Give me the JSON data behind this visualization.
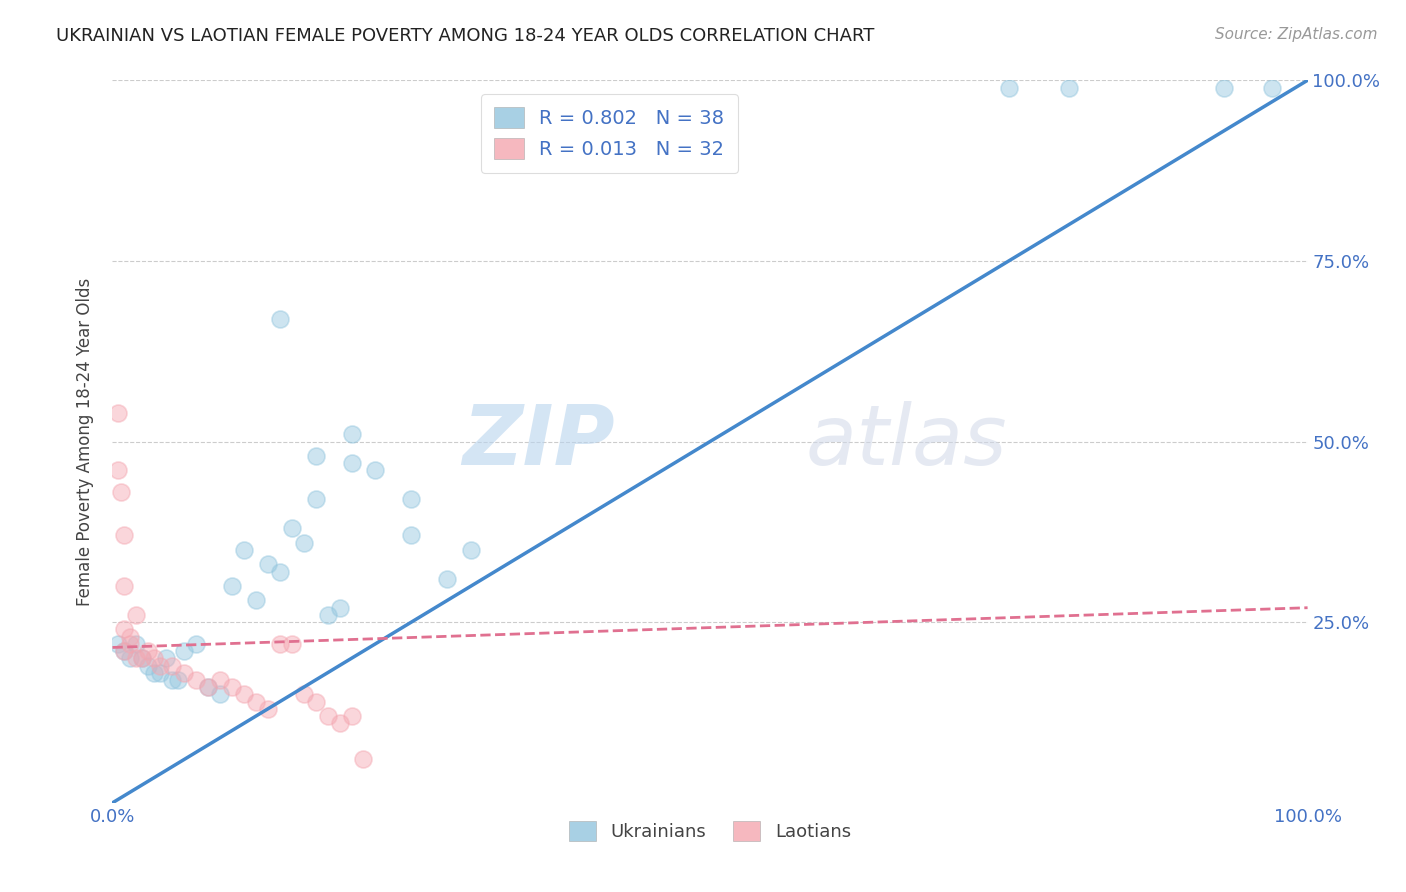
{
  "title": "UKRAINIAN VS LAOTIAN FEMALE POVERTY AMONG 18-24 YEAR OLDS CORRELATION CHART",
  "source": "Source: ZipAtlas.com",
  "ylabel": "Female Poverty Among 18-24 Year Olds",
  "xlim": [
    0,
    1
  ],
  "ylim": [
    0,
    1
  ],
  "watermark_zip": "ZIP",
  "watermark_atlas": "atlas",
  "ukrainian_color": "#92c5de",
  "laotian_color": "#f4a6b0",
  "trendline_ukrainian_color": "#4488cc",
  "trendline_laotian_color": "#e07090",
  "background_color": "#ffffff",
  "grid_color": "#cccccc",
  "title_color": "#222222",
  "tick_color": "#4472c4",
  "legend_label_ukrainian": "Ukrainians",
  "legend_label_laotian": "Laotians",
  "legend_r_ukr": "R = 0.802",
  "legend_n_ukr": "N = 38",
  "legend_r_lao": "R = 0.013",
  "legend_n_lao": "N = 32",
  "ukrainian_x": [
    0.005,
    0.01,
    0.015,
    0.02,
    0.025,
    0.03,
    0.035,
    0.04,
    0.045,
    0.05,
    0.055,
    0.06,
    0.07,
    0.08,
    0.09,
    0.1,
    0.11,
    0.12,
    0.13,
    0.14,
    0.15,
    0.16,
    0.17,
    0.18,
    0.19,
    0.2,
    0.22,
    0.25,
    0.28,
    0.14,
    0.17,
    0.2,
    0.25,
    0.3,
    0.75,
    0.8,
    0.93,
    0.97
  ],
  "ukrainian_y": [
    0.22,
    0.21,
    0.2,
    0.22,
    0.2,
    0.19,
    0.18,
    0.18,
    0.2,
    0.17,
    0.17,
    0.21,
    0.22,
    0.16,
    0.15,
    0.3,
    0.35,
    0.28,
    0.33,
    0.32,
    0.38,
    0.36,
    0.48,
    0.26,
    0.27,
    0.51,
    0.46,
    0.37,
    0.31,
    0.67,
    0.42,
    0.47,
    0.42,
    0.35,
    0.99,
    0.99,
    0.99,
    0.99
  ],
  "laotian_x": [
    0.005,
    0.005,
    0.007,
    0.01,
    0.01,
    0.01,
    0.01,
    0.015,
    0.015,
    0.02,
    0.02,
    0.025,
    0.03,
    0.035,
    0.04,
    0.05,
    0.06,
    0.07,
    0.08,
    0.09,
    0.1,
    0.11,
    0.12,
    0.13,
    0.14,
    0.15,
    0.16,
    0.17,
    0.18,
    0.19,
    0.2,
    0.21
  ],
  "laotian_y": [
    0.54,
    0.46,
    0.43,
    0.37,
    0.3,
    0.24,
    0.21,
    0.22,
    0.23,
    0.26,
    0.2,
    0.2,
    0.21,
    0.2,
    0.19,
    0.19,
    0.18,
    0.17,
    0.16,
    0.17,
    0.16,
    0.15,
    0.14,
    0.13,
    0.22,
    0.22,
    0.15,
    0.14,
    0.12,
    0.11,
    0.12,
    0.06
  ],
  "ukr_trendline_x": [
    0.0,
    1.0
  ],
  "ukr_trendline_y": [
    0.0,
    1.0
  ],
  "lao_trendline_x": [
    0.0,
    1.0
  ],
  "lao_trendline_y": [
    0.215,
    0.27
  ]
}
